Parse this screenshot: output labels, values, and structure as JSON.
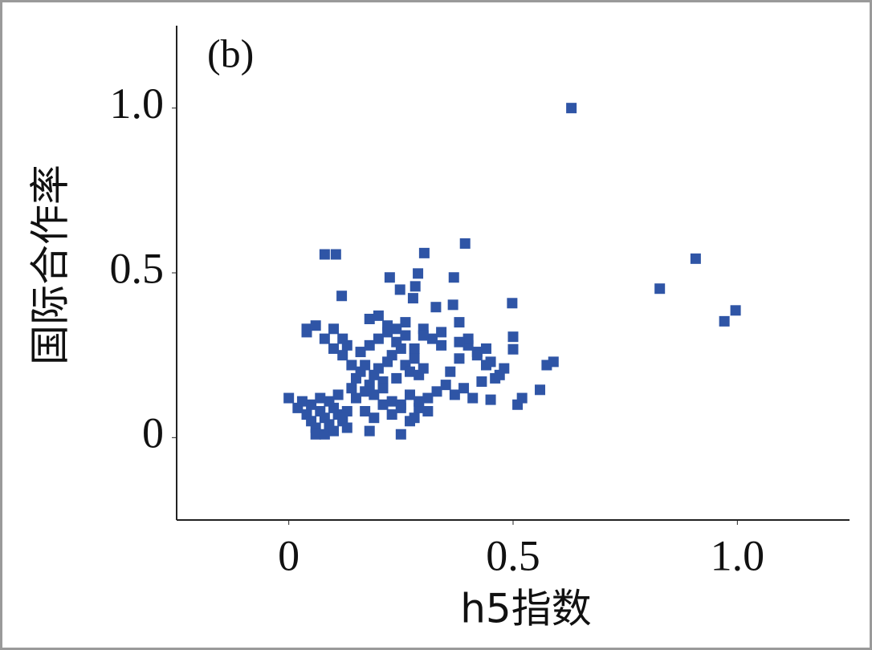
{
  "chart_data": {
    "type": "scatter",
    "annotation": "(b)",
    "xlabel": "h5指数",
    "ylabel": "国际合作率",
    "color": "#2f55a6",
    "xlim": [
      -0.25,
      1.25
    ],
    "ylim": [
      -0.25,
      1.25
    ],
    "xticks": [
      0,
      0.5,
      {
        "value": 1,
        "label": "1.0"
      }
    ],
    "yticks": [
      0,
      0.5,
      {
        "value": 1,
        "label": "1.0"
      }
    ],
    "x": [
      0.63,
      0.907,
      0.827,
      0.996,
      0.971,
      0.393,
      0.302,
      0.08,
      0.105,
      0.288,
      0.368,
      0.225,
      0.282,
      0.248,
      0.277,
      0.118,
      0.498,
      0.328,
      0.366,
      0.5,
      0.5,
      0.59,
      0.575,
      0.0,
      0.56,
      0.52,
      0.45,
      0.51,
      0.18,
      0.25,
      0.02,
      0.04,
      0.05,
      0.06,
      0.07,
      0.08,
      0.09,
      0.1,
      0.11,
      0.12,
      0.13,
      0.03,
      0.05,
      0.07,
      0.09,
      0.11,
      0.13,
      0.06,
      0.08,
      0.1,
      0.12,
      0.04,
      0.14,
      0.04,
      0.06,
      0.1,
      0.12,
      0.15,
      0.16,
      0.17,
      0.18,
      0.19,
      0.2,
      0.21,
      0.22,
      0.23,
      0.24,
      0.25,
      0.26,
      0.27,
      0.28,
      0.29,
      0.3,
      0.15,
      0.17,
      0.19,
      0.21,
      0.23,
      0.25,
      0.27,
      0.29,
      0.31,
      0.33,
      0.35,
      0.16,
      0.18,
      0.2,
      0.22,
      0.24,
      0.26,
      0.28,
      0.3,
      0.32,
      0.34,
      0.17,
      0.19,
      0.21,
      0.23,
      0.25,
      0.27,
      0.29,
      0.31,
      0.18,
      0.22,
      0.26,
      0.3,
      0.34,
      0.38,
      0.36,
      0.38,
      0.4,
      0.42,
      0.44,
      0.46,
      0.48,
      0.37,
      0.39,
      0.41,
      0.43,
      0.45,
      0.47,
      0.4,
      0.42,
      0.38,
      0.44,
      0.2,
      0.24,
      0.28,
      0.14,
      0.12,
      0.13,
      0.08,
      0.1
    ],
    "y": [
      1.0,
      0.543,
      0.452,
      0.386,
      0.353,
      0.589,
      0.56,
      0.556,
      0.556,
      0.498,
      0.486,
      0.486,
      0.459,
      0.449,
      0.423,
      0.43,
      0.408,
      0.396,
      0.403,
      0.306,
      0.268,
      0.23,
      0.22,
      0.12,
      0.145,
      0.12,
      0.115,
      0.1,
      0.02,
      0.01,
      0.09,
      0.07,
      0.05,
      0.03,
      0.08,
      0.06,
      0.04,
      0.09,
      0.07,
      0.05,
      0.03,
      0.11,
      0.1,
      0.12,
      0.11,
      0.13,
      0.08,
      0.01,
      0.01,
      0.02,
      0.06,
      0.32,
      0.15,
      0.33,
      0.34,
      0.33,
      0.3,
      0.18,
      0.2,
      0.22,
      0.16,
      0.19,
      0.21,
      0.17,
      0.23,
      0.25,
      0.18,
      0.27,
      0.22,
      0.2,
      0.24,
      0.19,
      0.21,
      0.12,
      0.14,
      0.13,
      0.15,
      0.11,
      0.1,
      0.13,
      0.09,
      0.12,
      0.14,
      0.16,
      0.26,
      0.28,
      0.3,
      0.32,
      0.29,
      0.31,
      0.27,
      0.33,
      0.3,
      0.28,
      0.08,
      0.06,
      0.1,
      0.07,
      0.09,
      0.05,
      0.11,
      0.08,
      0.36,
      0.34,
      0.35,
      0.31,
      0.32,
      0.35,
      0.2,
      0.24,
      0.28,
      0.26,
      0.22,
      0.18,
      0.21,
      0.13,
      0.15,
      0.12,
      0.17,
      0.23,
      0.19,
      0.3,
      0.25,
      0.29,
      0.27,
      0.37,
      0.33,
      0.06,
      0.22,
      0.25,
      0.28,
      0.3,
      0.27
    ]
  }
}
